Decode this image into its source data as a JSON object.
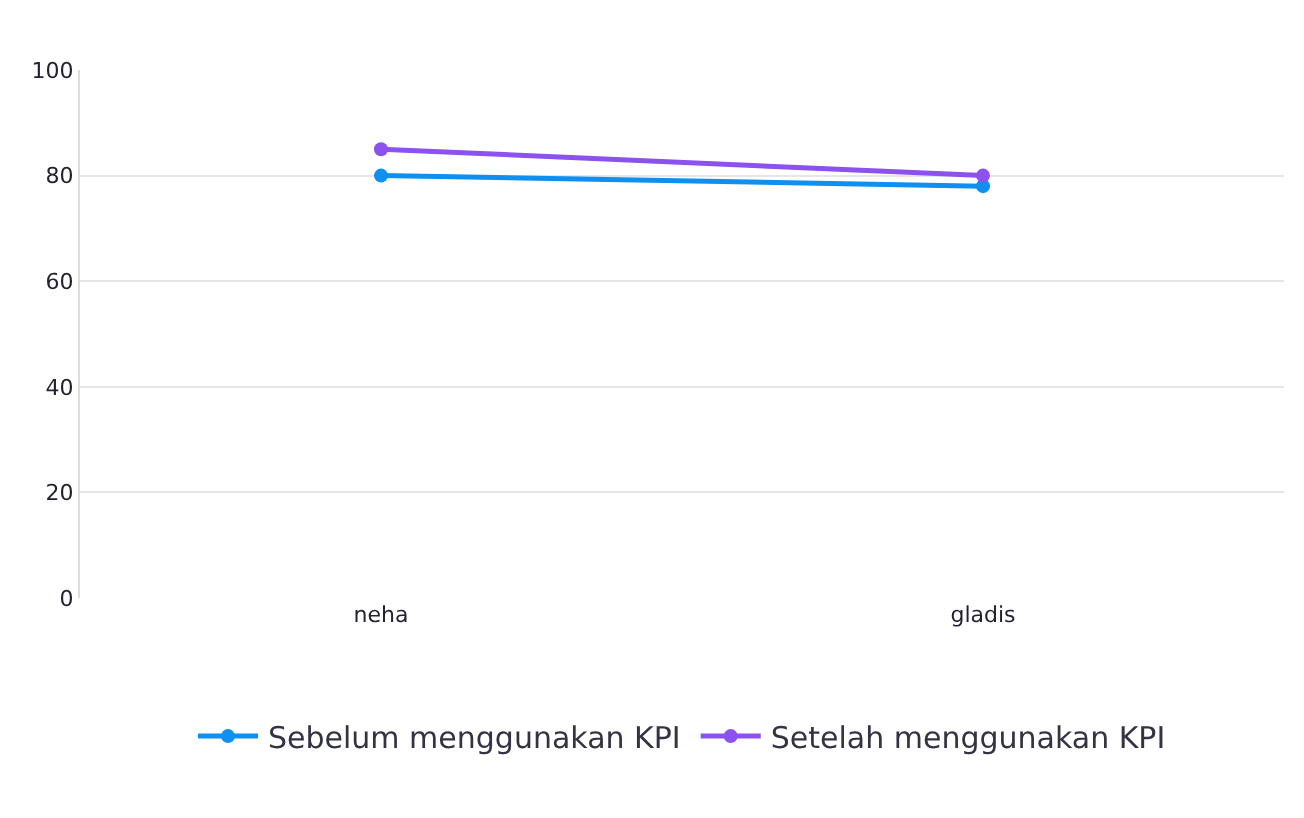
{
  "chart_data": {
    "type": "line",
    "categories": [
      "neha",
      "gladis"
    ],
    "series": [
      {
        "name": "Sebelum menggunakan KPI",
        "color": "#0f8ff0",
        "values": [
          80,
          78
        ]
      },
      {
        "name": "Setelah menggunakan KPI",
        "color": "#8b52f0",
        "values": [
          85,
          80
        ]
      }
    ],
    "ylim": [
      0,
      100
    ],
    "yticks": [
      0,
      20,
      40,
      60,
      80,
      100
    ],
    "grid": "y",
    "legend": "bottom",
    "marker": "circle",
    "line_style": "solid"
  }
}
